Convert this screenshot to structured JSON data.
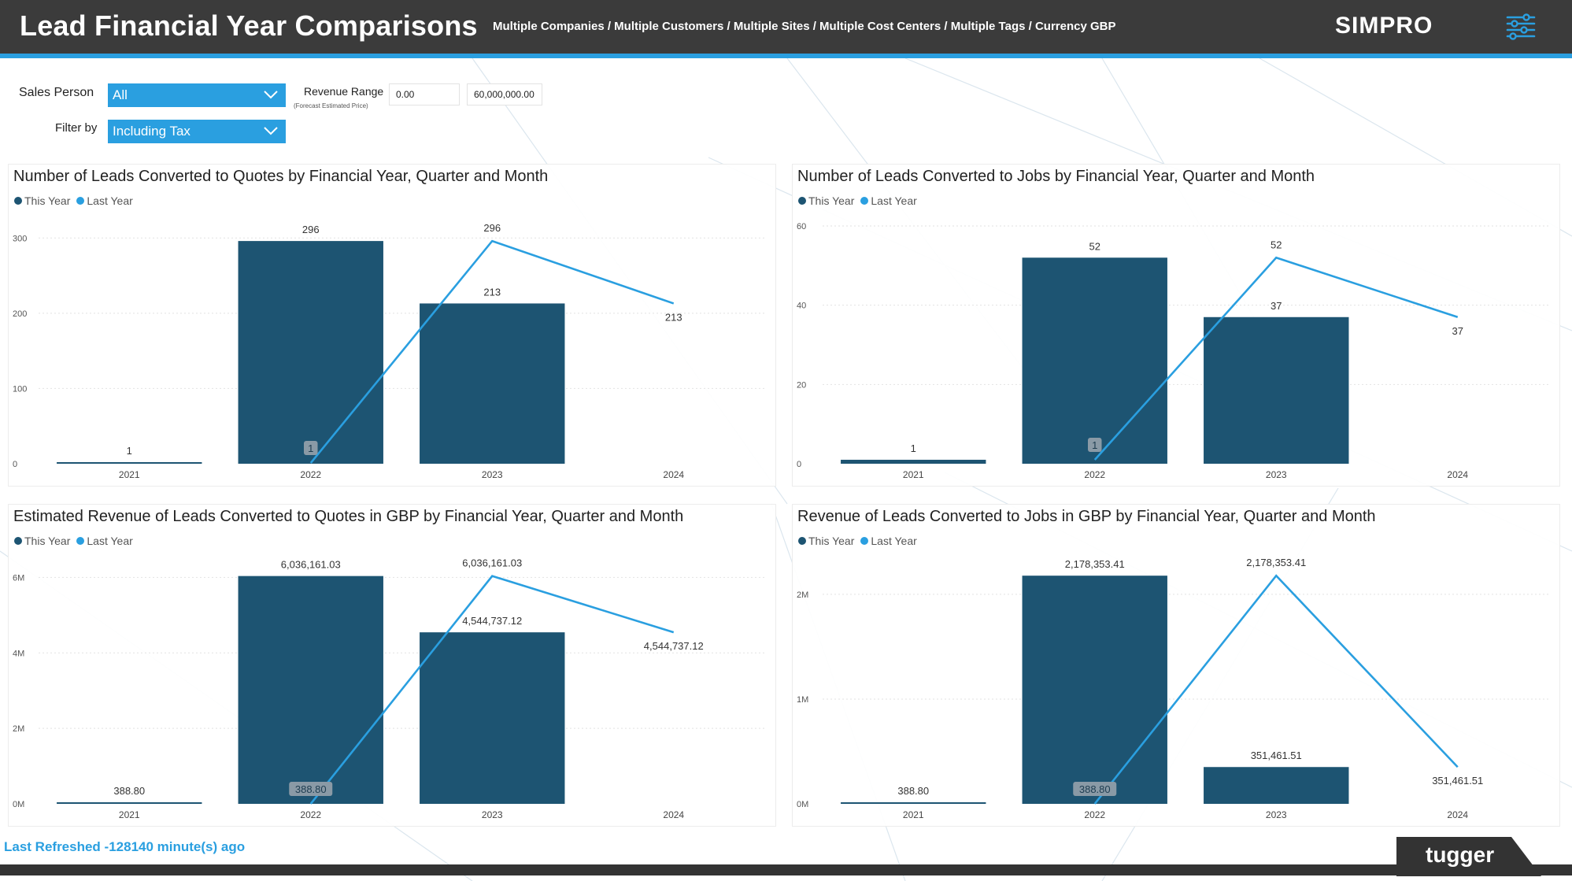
{
  "header": {
    "title": "Lead Financial Year Comparisons",
    "breadcrumb": "Multiple Companies / Multiple Customers / Multiple Sites / Multiple Cost Centers / Multiple Tags / Currency GBP",
    "brand": "SIMPRO",
    "menu_icon": "sliders-icon"
  },
  "filters": {
    "sales_person_label": "Sales Person",
    "sales_person_value": "All",
    "filter_by_label": "Filter by",
    "filter_by_value": "Including Tax",
    "revenue_range_label": "Revenue Range",
    "revenue_range_sublabel": "(Forecast Estimated Price)",
    "revenue_min": "0.00",
    "revenue_max": "60,000,000.00"
  },
  "legend": {
    "this_year": "This Year",
    "last_year": "Last Year"
  },
  "colors": {
    "this_year": "#1d5472",
    "last_year": "#2a9fe0",
    "accent": "#2a9fe0",
    "header": "#3b3b3b"
  },
  "chart_data": [
    {
      "type": "bar",
      "title": "Number of Leads Converted to Quotes by Financial Year, Quarter and Month",
      "categories": [
        "2021",
        "2022",
        "2023",
        "2024"
      ],
      "series": [
        {
          "name": "This Year",
          "type": "bar",
          "values": [
            1,
            296,
            213,
            null
          ],
          "labels": [
            "1",
            "296",
            "213",
            ""
          ]
        },
        {
          "name": "Last Year",
          "type": "line",
          "values": [
            null,
            1,
            296,
            213
          ],
          "labels": [
            "",
            "1",
            "296",
            "213"
          ]
        }
      ],
      "yticks": [
        0,
        100,
        200,
        300
      ],
      "ytick_labels": [
        "0",
        "100",
        "200",
        "300"
      ],
      "ylim": [
        0,
        316
      ]
    },
    {
      "type": "bar",
      "title": "Number of Leads Converted to Jobs by Financial Year, Quarter and Month",
      "categories": [
        "2021",
        "2022",
        "2023",
        "2024"
      ],
      "series": [
        {
          "name": "This Year",
          "type": "bar",
          "values": [
            1,
            52,
            37,
            null
          ],
          "labels": [
            "1",
            "52",
            "37",
            ""
          ]
        },
        {
          "name": "Last Year",
          "type": "line",
          "values": [
            null,
            1,
            52,
            37
          ],
          "labels": [
            "",
            "1",
            "52",
            "37"
          ]
        }
      ],
      "yticks": [
        0,
        20,
        40,
        60
      ],
      "ytick_labels": [
        "0",
        "20",
        "40",
        "60"
      ],
      "ylim": [
        0,
        60
      ]
    },
    {
      "type": "bar",
      "title": "Estimated Revenue of Leads Converted to Quotes in GBP by Financial Year, Quarter and Month",
      "categories": [
        "2021",
        "2022",
        "2023",
        "2024"
      ],
      "series": [
        {
          "name": "This Year",
          "type": "bar",
          "values": [
            388.8,
            6036161.03,
            4544737.12,
            null
          ],
          "labels": [
            "388.80",
            "6,036,161.03",
            "4,544,737.12",
            ""
          ]
        },
        {
          "name": "Last Year",
          "type": "line",
          "values": [
            null,
            388.8,
            6036161.03,
            4544737.12
          ],
          "labels": [
            "",
            "388.80",
            "6,036,161.03",
            "4,544,737.12"
          ]
        }
      ],
      "yticks": [
        0,
        2000000,
        4000000,
        6000000
      ],
      "ytick_labels": [
        "0M",
        "2M",
        "4M",
        "6M"
      ],
      "ylim": [
        0,
        6300000
      ]
    },
    {
      "type": "bar",
      "title": "Revenue of Leads Converted to Jobs in GBP by Financial Year, Quarter and Month",
      "categories": [
        "2021",
        "2022",
        "2023",
        "2024"
      ],
      "series": [
        {
          "name": "This Year",
          "type": "bar",
          "values": [
            388.8,
            2178353.41,
            351461.51,
            null
          ],
          "labels": [
            "388.80",
            "2,178,353.41",
            "351,461.51",
            ""
          ]
        },
        {
          "name": "Last Year",
          "type": "line",
          "values": [
            null,
            388.8,
            2178353.41,
            351461.51
          ],
          "labels": [
            "",
            "388.80",
            "2,178,353.41",
            "351,461.51"
          ]
        }
      ],
      "yticks": [
        0,
        1000000,
        2000000
      ],
      "ytick_labels": [
        "0M",
        "1M",
        "2M"
      ],
      "ylim": [
        0,
        2270000
      ]
    }
  ],
  "footer": {
    "last_refreshed": "Last Refreshed -128140 minute(s) ago",
    "tugger": "tugger"
  }
}
